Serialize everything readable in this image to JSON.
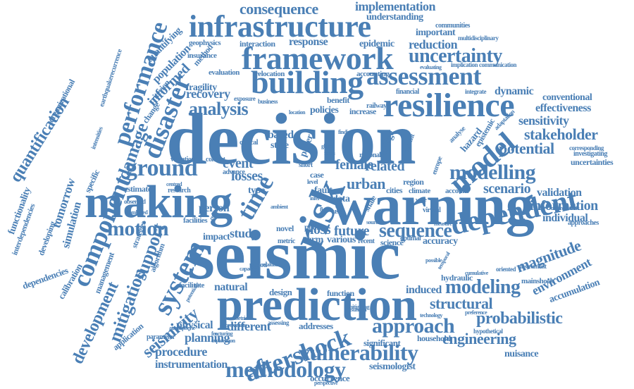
{
  "cloud": {
    "color": "#4a7fb5",
    "words": [
      "decision",
      "seismic",
      "warning",
      "prediction",
      "making",
      "risk",
      "framework",
      "infrastructure",
      "building",
      "resilience",
      "assessment",
      "dependent",
      "model",
      "component",
      "disaster",
      "performance",
      "system",
      "aftershock",
      "methodology",
      "vulnerability",
      "ground",
      "uncertainty",
      "modelling",
      "approach",
      "motion",
      "time",
      "damage",
      "analysis",
      "seismicity",
      "support",
      "mitigation",
      "development",
      "quantification",
      "sequence",
      "modeling",
      "consequence",
      "implementation",
      "probabilistic",
      "structural",
      "magnitude",
      "information",
      "stakeholder",
      "sensitivity",
      "potential",
      "scenario",
      "engineering",
      "natural",
      "different",
      "procedure",
      "planning",
      "physical",
      "instrumentation",
      "seismologist",
      "environment",
      "validation",
      "effectiveness",
      "uncertainties",
      "individual",
      "conventional",
      "dynamic",
      "accumulation",
      "hydraulic",
      "mainshock",
      "nuisance",
      "occurrence",
      "significant",
      "household",
      "addresses",
      "function",
      "design",
      "induced",
      "accuracy",
      "optimal",
      "science",
      "recent",
      "various",
      "term",
      "metric",
      "novel",
      "poor",
      "study",
      "loss",
      "future",
      "impact",
      "person",
      "facilities",
      "application",
      "parameter",
      "facilitate",
      "strategies",
      "algorithm",
      "management",
      "calibration",
      "dependencies",
      "interdependencies",
      "developing",
      "tomorrow",
      "simulation",
      "functionality",
      "specific",
      "intensities",
      "organizational",
      "earthquakerecurrence",
      "quantifying",
      "population",
      "informed",
      "criterion",
      "change",
      "fragility",
      "method",
      "insurance",
      "geophysics",
      "evaluation",
      "relocation",
      "recovery",
      "response",
      "interaction",
      "epidemic",
      "reduction",
      "accounting",
      "communities",
      "important",
      "understanding",
      "multidisciplinary",
      "implication",
      "communication",
      "evaluating",
      "financial",
      "integrate",
      "benefit",
      "policies",
      "increase",
      "railway",
      "exposure",
      "business",
      "location",
      "based",
      "state",
      "critical",
      "event",
      "losses",
      "type",
      "urban",
      "related",
      "female",
      "regional",
      "region",
      "cities",
      "climate",
      "account",
      "estimate",
      "research",
      "variation",
      "context",
      "advance",
      "centred",
      "data",
      "case",
      "fault",
      "user",
      "shale",
      "virtual",
      "hazard",
      "epistemic",
      "adaptation",
      "analyse",
      "corresponding",
      "investigating",
      "macroseismic",
      "approaches",
      "measure",
      "hypothetical",
      "oriented",
      "instrument",
      "technology",
      "preference",
      "cumulative",
      "possible",
      "temporal",
      "mitigating",
      "assessing",
      "fracturing",
      "exploration",
      "atmospheric",
      "perspective",
      "parametric",
      "approximate",
      "capacity",
      "potentially",
      "evaluate",
      "period",
      "bridge",
      "paper",
      "global",
      "focus",
      "short",
      "finding",
      "current",
      "level",
      "source",
      "observed",
      "combined",
      "flood",
      "resilient",
      "infer",
      "ambient",
      "wave",
      "europe",
      "tsunami",
      "global"
    ]
  }
}
